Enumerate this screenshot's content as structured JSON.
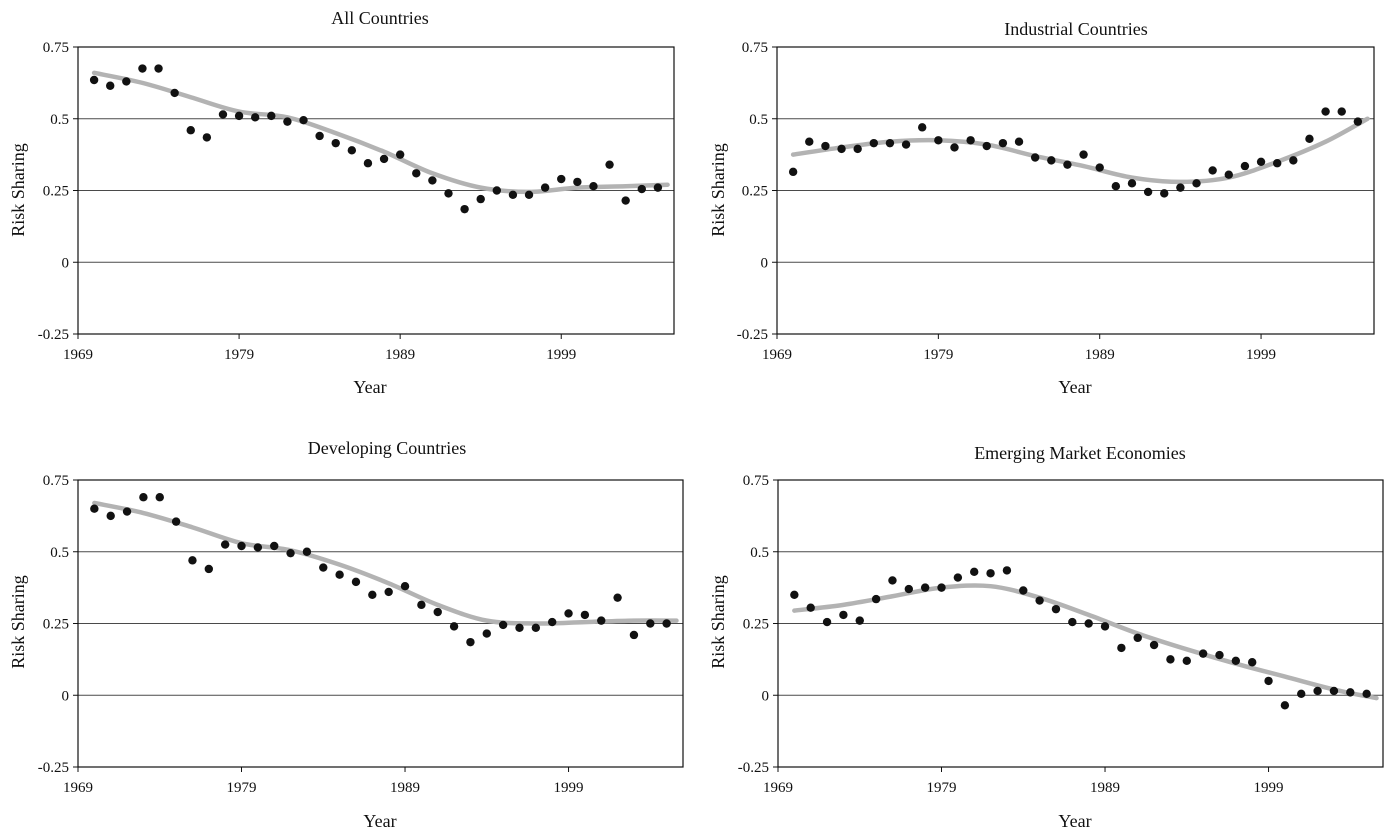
{
  "chart_data": [
    {
      "type": "scatter",
      "title": "All Countries",
      "xlabel": "Year",
      "ylabel": "Risk Sharing",
      "xlim": [
        1969,
        2006
      ],
      "ylim": [
        -0.25,
        0.75
      ],
      "xticks": [
        "1969",
        "1979",
        "1989",
        "1999"
      ],
      "yticks": [
        "-0.25",
        "0",
        "0.25",
        "0.5",
        "0.75"
      ],
      "grid": "horizontal",
      "series": [
        {
          "kind": "points",
          "x": [
            1970,
            1971,
            1972,
            1973,
            1974,
            1975,
            1976,
            1977,
            1978,
            1979,
            1980,
            1981,
            1982,
            1983,
            1984,
            1985,
            1986,
            1987,
            1988,
            1989,
            1990,
            1991,
            1992,
            1993,
            1994,
            1995,
            1996,
            1997,
            1998,
            1999,
            2000,
            2001,
            2002,
            2003,
            2004,
            2005
          ],
          "y": [
            0.635,
            0.615,
            0.63,
            0.675,
            0.675,
            0.59,
            0.46,
            0.435,
            0.515,
            0.51,
            0.505,
            0.51,
            0.49,
            0.495,
            0.44,
            0.415,
            0.39,
            0.345,
            0.36,
            0.375,
            0.31,
            0.285,
            0.24,
            0.185,
            0.22,
            0.25,
            0.235,
            0.235,
            0.26,
            0.29,
            0.28,
            0.265,
            0.34,
            0.215,
            0.255,
            0.26
          ]
        },
        {
          "kind": "trend",
          "x": [
            1970,
            1973,
            1976,
            1979,
            1982,
            1985,
            1988,
            1991,
            1994,
            1997,
            2000,
            2003,
            2005.6
          ],
          "y": [
            0.66,
            0.625,
            0.575,
            0.525,
            0.505,
            0.45,
            0.385,
            0.31,
            0.26,
            0.245,
            0.26,
            0.265,
            0.27
          ]
        }
      ]
    },
    {
      "type": "scatter",
      "title": "Industrial Countries",
      "xlabel": "Year",
      "ylabel": "Risk Sharing",
      "xlim": [
        1969,
        2006
      ],
      "ylim": [
        -0.25,
        0.75
      ],
      "xticks": [
        "1969",
        "1979",
        "1989",
        "1999"
      ],
      "yticks": [
        "-0.25",
        "0",
        "0.25",
        "0.5",
        "0.75"
      ],
      "grid": "horizontal",
      "series": [
        {
          "kind": "points",
          "x": [
            1970,
            1971,
            1972,
            1973,
            1974,
            1975,
            1976,
            1977,
            1978,
            1979,
            1980,
            1981,
            1982,
            1983,
            1984,
            1985,
            1986,
            1987,
            1988,
            1989,
            1990,
            1991,
            1992,
            1993,
            1994,
            1995,
            1996,
            1997,
            1998,
            1999,
            2000,
            2001,
            2002,
            2003,
            2004,
            2005
          ],
          "y": [
            0.315,
            0.42,
            0.405,
            0.395,
            0.395,
            0.415,
            0.415,
            0.41,
            0.47,
            0.425,
            0.4,
            0.425,
            0.405,
            0.415,
            0.42,
            0.365,
            0.355,
            0.34,
            0.375,
            0.33,
            0.265,
            0.275,
            0.245,
            0.24,
            0.26,
            0.275,
            0.32,
            0.305,
            0.335,
            0.35,
            0.345,
            0.355,
            0.43,
            0.525,
            0.525,
            0.49
          ]
        },
        {
          "kind": "trend",
          "x": [
            1970,
            1973,
            1976,
            1979,
            1982,
            1985,
            1988,
            1991,
            1994,
            1997,
            2000,
            2003,
            2005.6
          ],
          "y": [
            0.375,
            0.4,
            0.42,
            0.425,
            0.41,
            0.37,
            0.335,
            0.295,
            0.28,
            0.295,
            0.35,
            0.42,
            0.5
          ]
        }
      ]
    },
    {
      "type": "scatter",
      "title": "Developing Countries",
      "xlabel": "Year",
      "ylabel": "Risk Sharing",
      "xlim": [
        1969,
        2006
      ],
      "ylim": [
        -0.25,
        0.75
      ],
      "xticks": [
        "1969",
        "1979",
        "1989",
        "1999"
      ],
      "yticks": [
        "-0.25",
        "0",
        "0.25",
        "0.5",
        "0.75"
      ],
      "grid": "horizontal",
      "series": [
        {
          "kind": "points",
          "x": [
            1970,
            1971,
            1972,
            1973,
            1974,
            1975,
            1976,
            1977,
            1978,
            1979,
            1980,
            1981,
            1982,
            1983,
            1984,
            1985,
            1986,
            1987,
            1988,
            1989,
            1990,
            1991,
            1992,
            1993,
            1994,
            1995,
            1996,
            1997,
            1998,
            1999,
            2000,
            2001,
            2002,
            2003,
            2004,
            2005
          ],
          "y": [
            0.65,
            0.625,
            0.64,
            0.69,
            0.69,
            0.605,
            0.47,
            0.44,
            0.525,
            0.52,
            0.515,
            0.52,
            0.495,
            0.5,
            0.445,
            0.42,
            0.395,
            0.35,
            0.36,
            0.38,
            0.315,
            0.29,
            0.24,
            0.185,
            0.215,
            0.245,
            0.235,
            0.235,
            0.255,
            0.285,
            0.28,
            0.26,
            0.34,
            0.21,
            0.25,
            0.25
          ]
        },
        {
          "kind": "trend",
          "x": [
            1970,
            1973,
            1976,
            1979,
            1982,
            1985,
            1988,
            1991,
            1994,
            1997,
            2000,
            2003,
            2005.6
          ],
          "y": [
            0.67,
            0.635,
            0.585,
            0.53,
            0.505,
            0.455,
            0.39,
            0.315,
            0.26,
            0.25,
            0.255,
            0.26,
            0.26
          ]
        }
      ]
    },
    {
      "type": "scatter",
      "title": "Emerging Market Economies",
      "xlabel": "Year",
      "ylabel": "Risk Sharing",
      "xlim": [
        1969,
        2006
      ],
      "ylim": [
        -0.25,
        0.75
      ],
      "xticks": [
        "1969",
        "1979",
        "1989",
        "1999"
      ],
      "yticks": [
        "-0.25",
        "0",
        "0.25",
        "0.5",
        "0.75"
      ],
      "grid": "horizontal",
      "series": [
        {
          "kind": "points",
          "x": [
            1970,
            1971,
            1972,
            1973,
            1974,
            1975,
            1976,
            1977,
            1978,
            1979,
            1980,
            1981,
            1982,
            1983,
            1984,
            1985,
            1986,
            1987,
            1988,
            1989,
            1990,
            1991,
            1992,
            1993,
            1994,
            1995,
            1996,
            1997,
            1998,
            1999,
            2000,
            2001,
            2002,
            2003,
            2004,
            2005
          ],
          "y": [
            0.35,
            0.305,
            0.255,
            0.28,
            0.26,
            0.335,
            0.4,
            0.37,
            0.375,
            0.375,
            0.41,
            0.43,
            0.425,
            0.435,
            0.365,
            0.33,
            0.3,
            0.255,
            0.25,
            0.24,
            0.165,
            0.2,
            0.175,
            0.125,
            0.12,
            0.145,
            0.14,
            0.12,
            0.115,
            0.05,
            -0.035,
            0.005,
            0.015,
            0.015,
            0.01,
            0.005
          ]
        },
        {
          "kind": "trend",
          "x": [
            1970,
            1973,
            1976,
            1979,
            1982,
            1985,
            1988,
            1991,
            1994,
            1997,
            2000,
            2003,
            2005.6
          ],
          "y": [
            0.295,
            0.315,
            0.345,
            0.375,
            0.38,
            0.34,
            0.28,
            0.215,
            0.16,
            0.11,
            0.065,
            0.02,
            -0.01
          ]
        }
      ]
    }
  ]
}
